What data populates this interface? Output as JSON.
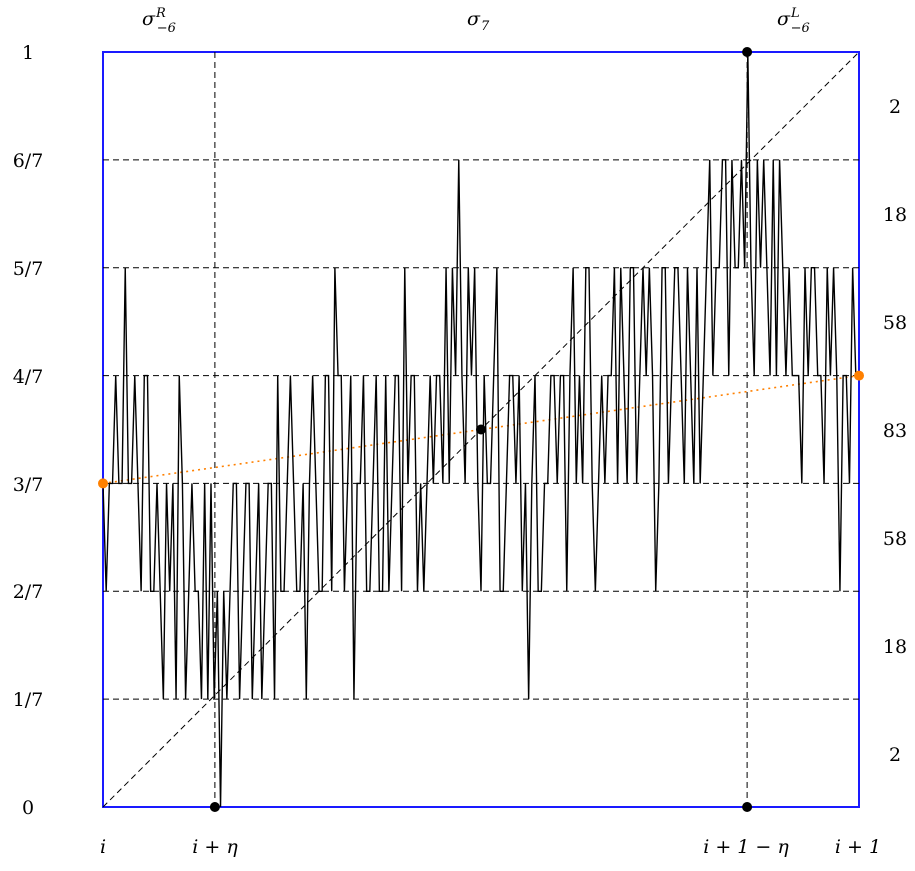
{
  "diagram": {
    "top_labels": {
      "left": {
        "base": "σ",
        "sup": "R",
        "sub": "−6"
      },
      "center": {
        "base": "σ",
        "sub": "7"
      },
      "right": {
        "base": "σ",
        "sup": "L",
        "sub": "−6"
      }
    },
    "y_tick_labels": [
      "0",
      "1/7",
      "2/7",
      "3/7",
      "4/7",
      "5/7",
      "6/7",
      "1"
    ],
    "right_counts": [
      "2",
      "18",
      "58",
      "83",
      "58",
      "18",
      "2"
    ],
    "x_labels": [
      "i",
      "i + η",
      "i + 1 − η",
      "i + 1"
    ],
    "eta_fraction": 0.148,
    "path_levels": [
      3,
      2,
      3,
      3,
      4,
      3,
      3,
      5,
      3,
      3,
      4,
      3,
      2,
      4,
      4,
      2,
      2,
      3,
      2,
      1,
      3,
      2,
      3,
      1,
      4,
      3,
      1,
      2,
      3,
      2,
      2,
      1,
      3,
      1,
      3,
      1,
      2,
      0,
      2,
      1,
      2,
      3,
      3,
      1,
      2,
      3,
      3,
      1,
      2,
      3,
      1,
      2,
      3,
      3,
      1,
      4,
      2,
      2,
      3,
      4,
      3,
      2,
      2,
      3,
      1,
      3,
      4,
      3,
      2,
      2,
      4,
      4,
      2,
      5,
      4,
      4,
      2,
      3,
      4,
      1,
      3,
      3,
      4,
      2,
      2,
      3,
      4,
      2,
      2,
      4,
      2,
      3,
      4,
      4,
      2,
      5,
      3,
      4,
      4,
      2,
      3,
      2,
      3,
      4,
      3,
      4,
      4,
      3,
      5,
      3,
      5,
      4,
      6,
      4,
      3,
      5,
      4,
      5,
      3,
      2,
      4,
      3,
      3,
      4,
      5,
      2,
      2,
      3,
      4,
      4,
      3,
      4,
      2,
      3,
      1,
      3,
      4,
      2,
      2,
      3,
      3,
      4,
      4,
      3,
      4,
      4,
      2,
      4,
      5,
      3,
      4,
      3,
      5,
      5,
      3,
      2,
      3,
      4,
      3,
      4,
      4,
      5,
      3,
      5,
      4,
      3,
      5,
      5,
      3,
      4,
      5,
      4,
      5,
      4,
      2,
      3,
      5,
      5,
      3,
      4,
      5,
      5,
      4,
      3,
      5,
      4,
      3,
      5,
      3,
      4,
      5,
      6,
      4,
      5,
      5,
      6,
      6,
      4,
      6,
      5,
      5,
      6,
      5,
      7,
      5,
      4,
      6,
      5,
      6,
      5,
      4,
      6,
      4,
      6,
      5,
      4,
      5,
      4,
      4,
      4,
      3,
      5,
      4,
      5,
      5,
      4,
      4,
      3,
      5,
      4,
      5,
      4,
      2,
      4,
      4,
      3,
      5,
      4,
      4
    ]
  }
}
